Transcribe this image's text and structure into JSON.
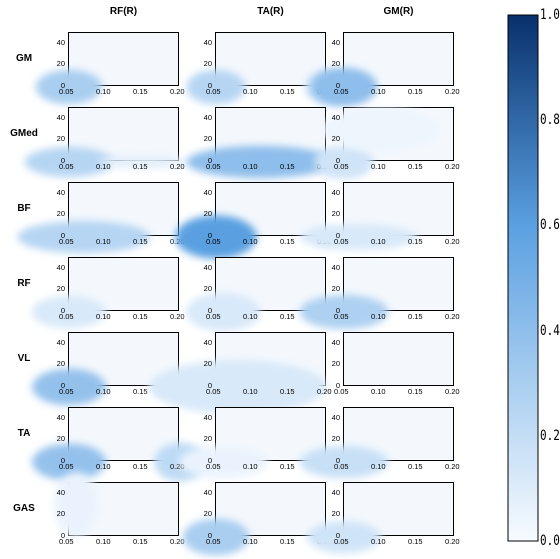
{
  "chart_data": {
    "type": "heatmap",
    "columns": [
      "RF(R)",
      "TA(R)",
      "GM(R)"
    ],
    "rows": [
      "GM",
      "GMed",
      "BF",
      "RF",
      "VL",
      "TA",
      "GAS"
    ],
    "x_ticks": [
      "0.05",
      "0.10",
      "0.15",
      "0.20"
    ],
    "y_ticks": [
      "0",
      "20",
      "40"
    ],
    "xlim": [
      0.05,
      0.2
    ],
    "ylim": [
      0,
      50
    ],
    "colorbar": {
      "ticks": [
        "0.0",
        "0.2",
        "0.4",
        "0.6",
        "0.8",
        "1.0"
      ],
      "range": [
        0,
        1
      ],
      "colormap": "Blues"
    },
    "panels": [
      [
        {
          "blobs": [
            {
              "x": 0.05,
              "y": 0,
              "rx": 0.045,
              "ry": 16,
              "v": 0.3
            }
          ]
        },
        {
          "blobs": [
            {
              "x": 0.05,
              "y": 0,
              "rx": 0.06,
              "ry": 14,
              "v": 0.25
            },
            {
              "x": 0.15,
              "y": 0,
              "rx": 0.06,
              "ry": 6,
              "v": 0.08
            }
          ]
        },
        {
          "blobs": [
            {
              "x": 0.07,
              "y": 0,
              "rx": 0.09,
              "ry": 15,
              "v": 0.25
            }
          ]
        },
        {
          "blobs": [
            {
              "x": 0.05,
              "y": 0,
              "rx": 0.05,
              "ry": 15,
              "v": 0.12
            }
          ]
        },
        {
          "blobs": [
            {
              "x": 0.05,
              "y": 0,
              "rx": 0.05,
              "ry": 17,
              "v": 0.38
            },
            {
              "x": 0.2,
              "y": 0,
              "rx": 0.04,
              "ry": 8,
              "v": 0.1
            }
          ]
        },
        {
          "blobs": [
            {
              "x": 0.05,
              "y": 0,
              "rx": 0.05,
              "ry": 17,
              "v": 0.38
            },
            {
              "x": 0.2,
              "y": 0,
              "rx": 0.035,
              "ry": 18,
              "v": 0.22
            }
          ]
        },
        {
          "blobs": [
            {
              "x": 0.06,
              "y": 30,
              "rx": 0.03,
              "ry": 30,
              "v": 0.05
            }
          ]
        }
      ],
      [
        {
          "blobs": [
            {
              "x": 0.05,
              "y": 0,
              "rx": 0.04,
              "ry": 16,
              "v": 0.25
            },
            {
              "x": 0.2,
              "y": 0,
              "rx": 0.03,
              "ry": 16,
              "v": 0.15
            }
          ]
        },
        {
          "blobs": [
            {
              "x": 0.11,
              "y": 0,
              "rx": 0.1,
              "ry": 15,
              "v": 0.4
            }
          ]
        },
        {
          "blobs": [
            {
              "x": 0.05,
              "y": 0,
              "rx": 0.055,
              "ry": 20,
              "v": 0.6
            },
            {
              "x": 0.2,
              "y": 0,
              "rx": 0.02,
              "ry": 8,
              "v": 0.12
            }
          ]
        },
        {
          "blobs": [
            {
              "x": 0.06,
              "y": 0,
              "rx": 0.05,
              "ry": 18,
              "v": 0.12
            }
          ]
        },
        {
          "blobs": [
            {
              "x": 0.08,
              "y": 0,
              "rx": 0.12,
              "ry": 25,
              "v": 0.12
            }
          ]
        },
        {
          "blobs": [
            {
              "x": 0.06,
              "y": 0,
              "rx": 0.06,
              "ry": 15,
              "v": 0.05
            }
          ]
        },
        {
          "blobs": [
            {
              "x": 0.05,
              "y": 0,
              "rx": 0.045,
              "ry": 17,
              "v": 0.3
            }
          ]
        }
      ],
      [
        {
          "blobs": [
            {
              "x": 0.05,
              "y": 0,
              "rx": 0.045,
              "ry": 18,
              "v": 0.4
            }
          ]
        },
        {
          "blobs": [
            {
              "x": 0.05,
              "y": 0,
              "rx": 0.04,
              "ry": 16,
              "v": 0.15
            },
            {
              "x": 0.1,
              "y": 30,
              "rx": 0.08,
              "ry": 20,
              "v": 0.04
            }
          ]
        },
        {
          "blobs": [
            {
              "x": 0.07,
              "y": 0,
              "rx": 0.08,
              "ry": 12,
              "v": 0.12
            }
          ]
        },
        {
          "blobs": [
            {
              "x": 0.05,
              "y": 0,
              "rx": 0.06,
              "ry": 16,
              "v": 0.28
            }
          ]
        },
        {
          "blobs": []
        },
        {
          "blobs": [
            {
              "x": 0.05,
              "y": 0,
              "rx": 0.06,
              "ry": 15,
              "v": 0.18
            }
          ]
        },
        {
          "blobs": [
            {
              "x": 0.05,
              "y": 0,
              "rx": 0.05,
              "ry": 15,
              "v": 0.15
            }
          ]
        }
      ]
    ]
  }
}
